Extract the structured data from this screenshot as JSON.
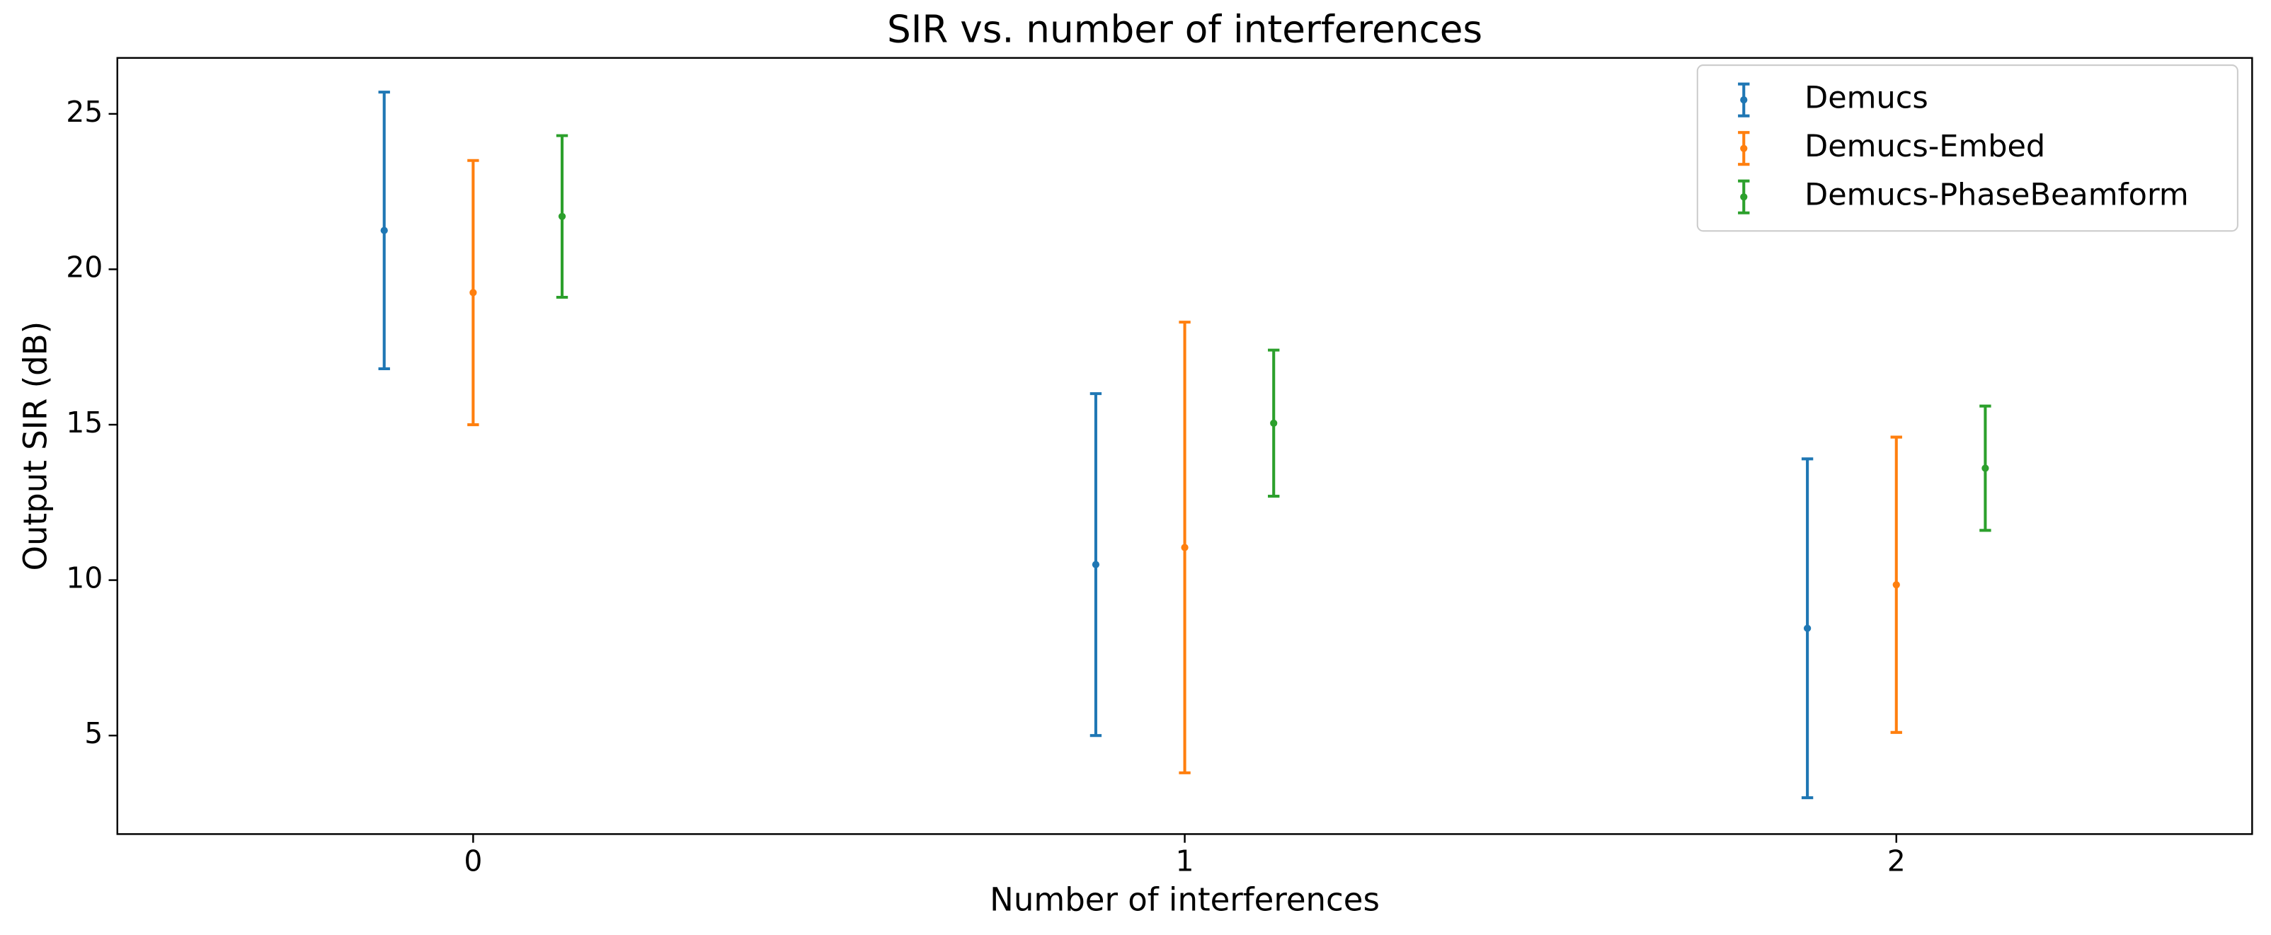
{
  "chart_data": {
    "type": "errorbar",
    "title": "SIR vs. number of interferences",
    "x_label": "Number of interferences",
    "y_label": "Output SIR (dB)",
    "x": [
      0,
      1,
      2
    ],
    "xlim": [
      -0.5,
      2.5
    ],
    "xticks": [
      0,
      1,
      2
    ],
    "ylim": [
      1.83,
      26.8
    ],
    "yticks": [
      5,
      10,
      15,
      20,
      25
    ],
    "legend": "upper right",
    "grid": false,
    "series": [
      {
        "name": "Demucs",
        "color": "#1f77b4",
        "values": [
          21.25,
          10.5,
          8.45
        ],
        "errors": [
          4.45,
          5.5,
          5.45
        ]
      },
      {
        "name": "Demucs-Embed",
        "color": "#ff7f0e",
        "values": [
          19.25,
          11.05,
          9.85
        ],
        "errors": [
          4.25,
          7.25,
          4.75
        ]
      },
      {
        "name": "Demucs-PhaseBeamform",
        "color": "#2ca02c",
        "values": [
          21.7,
          15.05,
          13.6
        ],
        "errors": [
          2.6,
          2.35,
          2.0
        ]
      }
    ]
  }
}
